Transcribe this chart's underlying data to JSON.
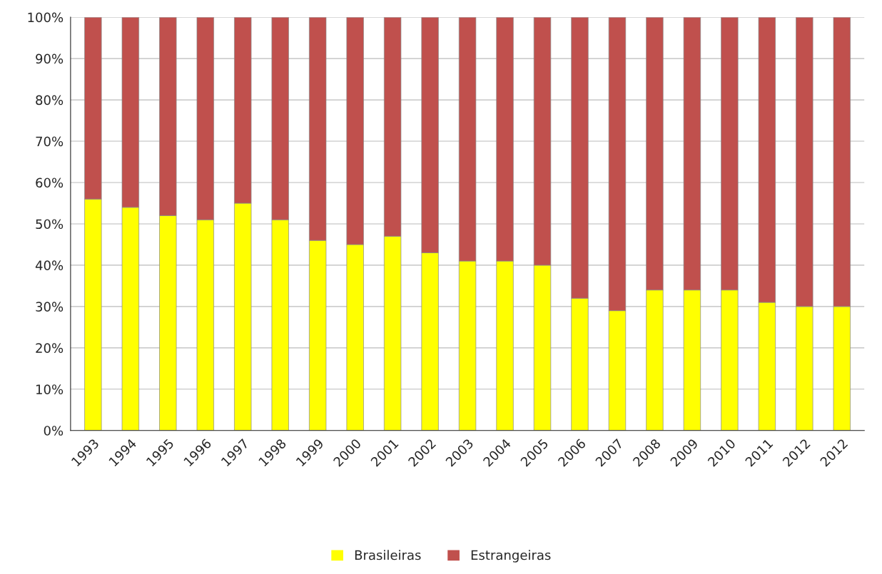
{
  "chart_data": {
    "type": "bar",
    "stacked": true,
    "categories": [
      "1993",
      "1994",
      "1995",
      "1996",
      "1997",
      "1998",
      "1999",
      "2000",
      "2001",
      "2002",
      "2003",
      "2004",
      "2005",
      "2006",
      "2007",
      "2008",
      "2009",
      "2010",
      "2011",
      "2012",
      "2012"
    ],
    "series": [
      {
        "name": "Brasileiras",
        "color": "#ffff00",
        "values": [
          56,
          54,
          52,
          51,
          55,
          51,
          46,
          45,
          47,
          43,
          41,
          41,
          40,
          32,
          29,
          34,
          34,
          34,
          31,
          30,
          30
        ]
      },
      {
        "name": "Estrangeiras",
        "color": "#c0504d",
        "values": [
          44,
          46,
          48,
          49,
          45,
          49,
          54,
          55,
          53,
          57,
          59,
          59,
          60,
          68,
          71,
          66,
          66,
          66,
          69,
          70,
          70
        ]
      }
    ],
    "ylim": [
      0,
      100
    ],
    "yticks": [
      {
        "value": 0,
        "label": "0%"
      },
      {
        "value": 10,
        "label": "10%"
      },
      {
        "value": 20,
        "label": "20%"
      },
      {
        "value": 30,
        "label": "30%"
      },
      {
        "value": 40,
        "label": "40%"
      },
      {
        "value": 50,
        "label": "50%"
      },
      {
        "value": 60,
        "label": "60%"
      },
      {
        "value": 70,
        "label": "70%"
      },
      {
        "value": 80,
        "label": "80%"
      },
      {
        "value": 90,
        "label": "90%"
      },
      {
        "value": 100,
        "label": "100%"
      }
    ],
    "grid": "y",
    "legend": "bottom"
  }
}
